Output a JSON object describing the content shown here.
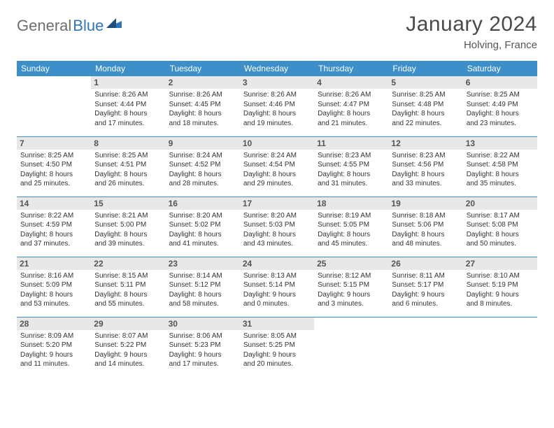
{
  "logo": {
    "text1": "General",
    "text2": "Blue"
  },
  "title": "January 2024",
  "location": "Holving, France",
  "colors": {
    "header_bg": "#3d8fca",
    "header_fg": "#ffffff",
    "daynum_bg": "#e8e8e8",
    "border": "#3d8fca",
    "logo_gray": "#6e6e6e",
    "logo_blue": "#2f77b8"
  },
  "weekdays": [
    "Sunday",
    "Monday",
    "Tuesday",
    "Wednesday",
    "Thursday",
    "Friday",
    "Saturday"
  ],
  "weeks": [
    [
      null,
      {
        "n": "1",
        "sunrise": "8:26 AM",
        "sunset": "4:44 PM",
        "day_h": "8",
        "day_m": "17"
      },
      {
        "n": "2",
        "sunrise": "8:26 AM",
        "sunset": "4:45 PM",
        "day_h": "8",
        "day_m": "18"
      },
      {
        "n": "3",
        "sunrise": "8:26 AM",
        "sunset": "4:46 PM",
        "day_h": "8",
        "day_m": "19"
      },
      {
        "n": "4",
        "sunrise": "8:26 AM",
        "sunset": "4:47 PM",
        "day_h": "8",
        "day_m": "21"
      },
      {
        "n": "5",
        "sunrise": "8:25 AM",
        "sunset": "4:48 PM",
        "day_h": "8",
        "day_m": "22"
      },
      {
        "n": "6",
        "sunrise": "8:25 AM",
        "sunset": "4:49 PM",
        "day_h": "8",
        "day_m": "23"
      }
    ],
    [
      {
        "n": "7",
        "sunrise": "8:25 AM",
        "sunset": "4:50 PM",
        "day_h": "8",
        "day_m": "25"
      },
      {
        "n": "8",
        "sunrise": "8:25 AM",
        "sunset": "4:51 PM",
        "day_h": "8",
        "day_m": "26"
      },
      {
        "n": "9",
        "sunrise": "8:24 AM",
        "sunset": "4:52 PM",
        "day_h": "8",
        "day_m": "28"
      },
      {
        "n": "10",
        "sunrise": "8:24 AM",
        "sunset": "4:54 PM",
        "day_h": "8",
        "day_m": "29"
      },
      {
        "n": "11",
        "sunrise": "8:23 AM",
        "sunset": "4:55 PM",
        "day_h": "8",
        "day_m": "31"
      },
      {
        "n": "12",
        "sunrise": "8:23 AM",
        "sunset": "4:56 PM",
        "day_h": "8",
        "day_m": "33"
      },
      {
        "n": "13",
        "sunrise": "8:22 AM",
        "sunset": "4:58 PM",
        "day_h": "8",
        "day_m": "35"
      }
    ],
    [
      {
        "n": "14",
        "sunrise": "8:22 AM",
        "sunset": "4:59 PM",
        "day_h": "8",
        "day_m": "37"
      },
      {
        "n": "15",
        "sunrise": "8:21 AM",
        "sunset": "5:00 PM",
        "day_h": "8",
        "day_m": "39"
      },
      {
        "n": "16",
        "sunrise": "8:20 AM",
        "sunset": "5:02 PM",
        "day_h": "8",
        "day_m": "41"
      },
      {
        "n": "17",
        "sunrise": "8:20 AM",
        "sunset": "5:03 PM",
        "day_h": "8",
        "day_m": "43"
      },
      {
        "n": "18",
        "sunrise": "8:19 AM",
        "sunset": "5:05 PM",
        "day_h": "8",
        "day_m": "45"
      },
      {
        "n": "19",
        "sunrise": "8:18 AM",
        "sunset": "5:06 PM",
        "day_h": "8",
        "day_m": "48"
      },
      {
        "n": "20",
        "sunrise": "8:17 AM",
        "sunset": "5:08 PM",
        "day_h": "8",
        "day_m": "50"
      }
    ],
    [
      {
        "n": "21",
        "sunrise": "8:16 AM",
        "sunset": "5:09 PM",
        "day_h": "8",
        "day_m": "53"
      },
      {
        "n": "22",
        "sunrise": "8:15 AM",
        "sunset": "5:11 PM",
        "day_h": "8",
        "day_m": "55"
      },
      {
        "n": "23",
        "sunrise": "8:14 AM",
        "sunset": "5:12 PM",
        "day_h": "8",
        "day_m": "58"
      },
      {
        "n": "24",
        "sunrise": "8:13 AM",
        "sunset": "5:14 PM",
        "day_h": "9",
        "day_m": "0"
      },
      {
        "n": "25",
        "sunrise": "8:12 AM",
        "sunset": "5:15 PM",
        "day_h": "9",
        "day_m": "3"
      },
      {
        "n": "26",
        "sunrise": "8:11 AM",
        "sunset": "5:17 PM",
        "day_h": "9",
        "day_m": "6"
      },
      {
        "n": "27",
        "sunrise": "8:10 AM",
        "sunset": "5:19 PM",
        "day_h": "9",
        "day_m": "8"
      }
    ],
    [
      {
        "n": "28",
        "sunrise": "8:09 AM",
        "sunset": "5:20 PM",
        "day_h": "9",
        "day_m": "11"
      },
      {
        "n": "29",
        "sunrise": "8:07 AM",
        "sunset": "5:22 PM",
        "day_h": "9",
        "day_m": "14"
      },
      {
        "n": "30",
        "sunrise": "8:06 AM",
        "sunset": "5:23 PM",
        "day_h": "9",
        "day_m": "17"
      },
      {
        "n": "31",
        "sunrise": "8:05 AM",
        "sunset": "5:25 PM",
        "day_h": "9",
        "day_m": "20"
      },
      null,
      null,
      null
    ]
  ]
}
